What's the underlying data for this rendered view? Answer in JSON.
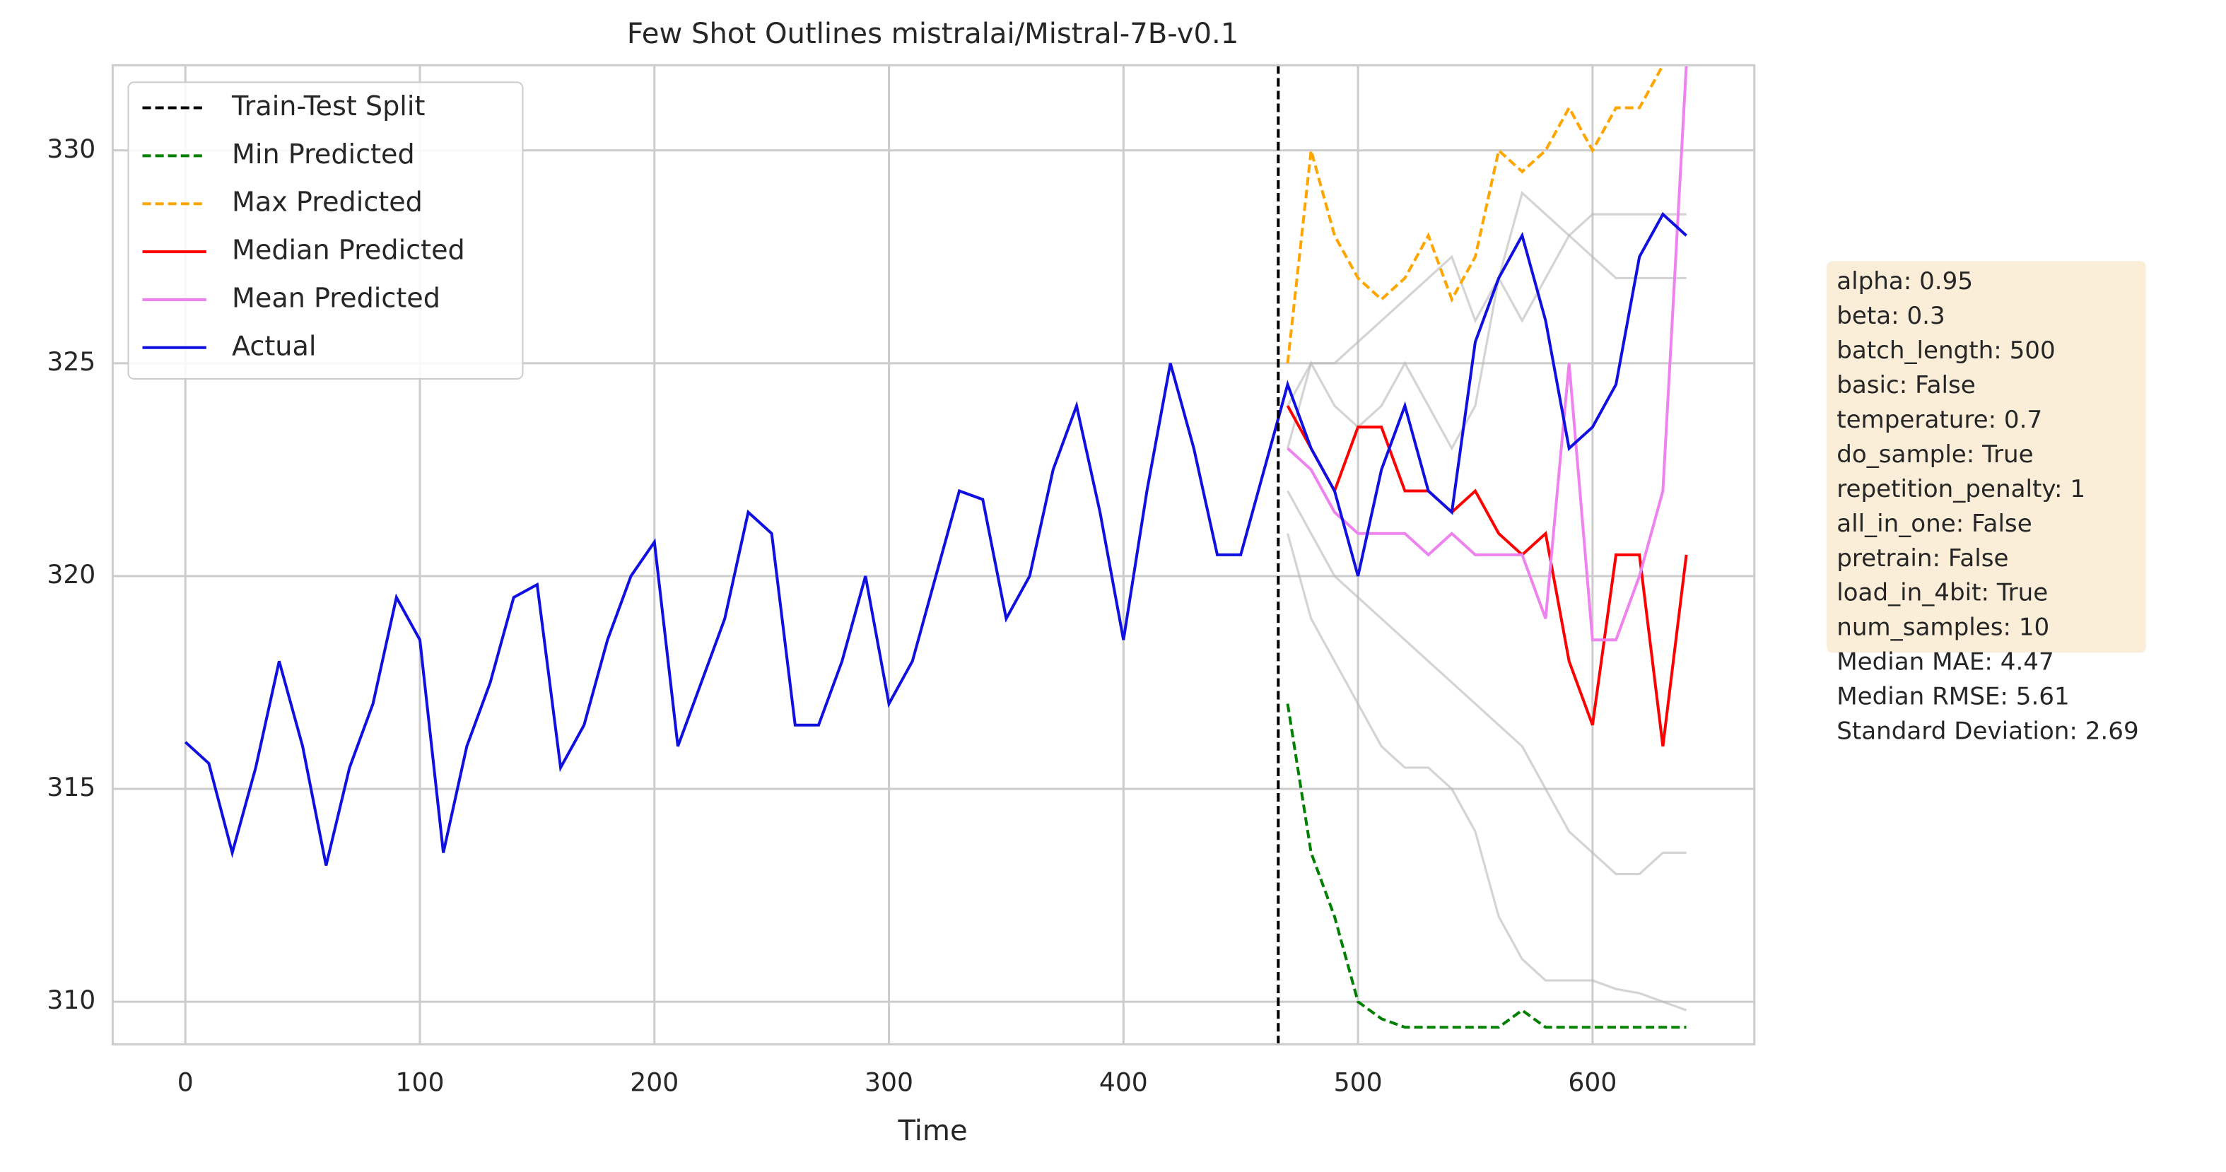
{
  "chart_data": {
    "type": "line",
    "title": "Few Shot Outlines mistralai/Mistral-7B-v0.1",
    "x_label": "Time",
    "xlim": [
      -31,
      669
    ],
    "ylim": [
      309,
      332
    ],
    "xticks": [
      0,
      100,
      200,
      300,
      400,
      500,
      600
    ],
    "yticks": [
      310,
      315,
      320,
      325,
      330
    ],
    "grid": true,
    "legend": "upper left",
    "vlines": [
      {
        "name": "Train-Test Split",
        "x": 466,
        "color": "#000000",
        "dash": true
      }
    ],
    "x": [
      0,
      10,
      20,
      30,
      40,
      50,
      60,
      70,
      80,
      90,
      100,
      110,
      120,
      130,
      140,
      150,
      160,
      170,
      180,
      190,
      200,
      210,
      220,
      230,
      240,
      250,
      260,
      270,
      280,
      290,
      300,
      310,
      320,
      330,
      340,
      350,
      360,
      370,
      380,
      390,
      400,
      410,
      420,
      430,
      440,
      450,
      460,
      470,
      480,
      490,
      500,
      510,
      520,
      530,
      540,
      550,
      560,
      570,
      580,
      590,
      600,
      610,
      620,
      630,
      640
    ],
    "series": [
      {
        "color": "#b8b8b8",
        "values": [
          null,
          null,
          null,
          null,
          null,
          null,
          null,
          null,
          null,
          null,
          null,
          null,
          null,
          null,
          null,
          null,
          null,
          null,
          null,
          null,
          null,
          null,
          null,
          null,
          null,
          null,
          null,
          null,
          null,
          null,
          null,
          null,
          null,
          null,
          null,
          null,
          null,
          null,
          null,
          null,
          null,
          null,
          null,
          null,
          null,
          null,
          null,
          324,
          325,
          325,
          325.5,
          326,
          326.5,
          327,
          327.5,
          326,
          327,
          329,
          328.5,
          328,
          328.5,
          328.5,
          328.5,
          328.5,
          328.5
        ]
      },
      {
        "color": "#b8b8b8",
        "values": [
          null,
          null,
          null,
          null,
          null,
          null,
          null,
          null,
          null,
          null,
          null,
          null,
          null,
          null,
          null,
          null,
          null,
          null,
          null,
          null,
          null,
          null,
          null,
          null,
          null,
          null,
          null,
          null,
          null,
          null,
          null,
          null,
          null,
          null,
          null,
          null,
          null,
          null,
          null,
          null,
          null,
          null,
          null,
          null,
          null,
          null,
          null,
          322,
          321,
          320,
          319.5,
          319,
          318.5,
          318,
          317.5,
          317,
          316.5,
          316,
          315,
          314,
          313.5,
          313,
          313,
          313.5,
          313.5
        ]
      },
      {
        "color": "#b8b8b8",
        "values": [
          null,
          null,
          null,
          null,
          null,
          null,
          null,
          null,
          null,
          null,
          null,
          null,
          null,
          null,
          null,
          null,
          null,
          null,
          null,
          null,
          null,
          null,
          null,
          null,
          null,
          null,
          null,
          null,
          null,
          null,
          null,
          null,
          null,
          null,
          null,
          null,
          null,
          null,
          null,
          null,
          null,
          null,
          null,
          null,
          null,
          null,
          null,
          321,
          319,
          318,
          317,
          316,
          315.5,
          315.5,
          315,
          314,
          312,
          311,
          310.5,
          310.5,
          310.5,
          310.3,
          310.2,
          310,
          309.8
        ]
      },
      {
        "color": "#b8b8b8",
        "values": [
          null,
          null,
          null,
          null,
          null,
          null,
          null,
          null,
          null,
          null,
          null,
          null,
          null,
          null,
          null,
          null,
          null,
          null,
          null,
          null,
          null,
          null,
          null,
          null,
          null,
          null,
          null,
          null,
          null,
          null,
          null,
          null,
          null,
          null,
          null,
          null,
          null,
          null,
          null,
          null,
          null,
          null,
          null,
          null,
          null,
          null,
          null,
          323,
          325,
          324,
          323.5,
          324,
          325,
          324,
          323,
          324,
          327,
          326,
          327,
          328,
          327.5,
          327,
          327,
          327,
          327
        ]
      },
      {
        "name": "Min Predicted",
        "color": "#008000",
        "dash": true,
        "values": [
          null,
          null,
          null,
          null,
          null,
          null,
          null,
          null,
          null,
          null,
          null,
          null,
          null,
          null,
          null,
          null,
          null,
          null,
          null,
          null,
          null,
          null,
          null,
          null,
          null,
          null,
          null,
          null,
          null,
          null,
          null,
          null,
          null,
          null,
          null,
          null,
          null,
          null,
          null,
          null,
          null,
          null,
          null,
          null,
          null,
          null,
          null,
          317,
          313.5,
          312,
          310,
          309.6,
          309.4,
          309.4,
          309.4,
          309.4,
          309.4,
          309.8,
          309.4,
          309.4,
          309.4,
          309.4,
          309.4,
          309.4,
          309.4
        ]
      },
      {
        "name": "Max Predicted",
        "color": "#ffa500",
        "dash": true,
        "values": [
          null,
          null,
          null,
          null,
          null,
          null,
          null,
          null,
          null,
          null,
          null,
          null,
          null,
          null,
          null,
          null,
          null,
          null,
          null,
          null,
          null,
          null,
          null,
          null,
          null,
          null,
          null,
          null,
          null,
          null,
          null,
          null,
          null,
          null,
          null,
          null,
          null,
          null,
          null,
          null,
          null,
          null,
          null,
          null,
          null,
          null,
          null,
          325,
          330,
          328,
          327,
          326.5,
          327,
          328,
          326.5,
          327.5,
          330,
          329.5,
          330,
          331,
          330,
          331,
          331,
          332,
          null
        ]
      },
      {
        "name": "Median Predicted",
        "color": "#ff0000",
        "values": [
          null,
          null,
          null,
          null,
          null,
          null,
          null,
          null,
          null,
          null,
          null,
          null,
          null,
          null,
          null,
          null,
          null,
          null,
          null,
          null,
          null,
          null,
          null,
          null,
          null,
          null,
          null,
          null,
          null,
          null,
          null,
          null,
          null,
          null,
          null,
          null,
          null,
          null,
          null,
          null,
          null,
          null,
          null,
          null,
          null,
          null,
          null,
          324,
          323,
          322,
          323.5,
          323.5,
          322,
          322,
          321.5,
          322,
          321,
          320.5,
          321,
          318,
          316.5,
          320.5,
          320.5,
          316,
          320.5
        ]
      },
      {
        "name": "Mean Predicted",
        "color": "#ee82ee",
        "values": [
          null,
          null,
          null,
          null,
          null,
          null,
          null,
          null,
          null,
          null,
          null,
          null,
          null,
          null,
          null,
          null,
          null,
          null,
          null,
          null,
          null,
          null,
          null,
          null,
          null,
          null,
          null,
          null,
          null,
          null,
          null,
          null,
          null,
          null,
          null,
          null,
          null,
          null,
          null,
          null,
          null,
          null,
          null,
          null,
          null,
          null,
          null,
          323,
          322.5,
          321.5,
          321,
          321,
          321,
          320.5,
          321,
          320.5,
          320.5,
          320.5,
          319,
          325,
          318.5,
          318.5,
          320,
          322,
          332
        ]
      },
      {
        "name": "Actual",
        "color": "#1010e0",
        "values": [
          316.1,
          315.6,
          313.5,
          315.5,
          318.0,
          316.0,
          313.2,
          315.5,
          317.0,
          319.5,
          318.5,
          313.5,
          316.0,
          317.5,
          319.5,
          319.8,
          315.5,
          316.5,
          318.5,
          320.0,
          320.8,
          316.0,
          317.5,
          319.0,
          321.5,
          321.0,
          316.5,
          316.5,
          318.0,
          320.0,
          317.0,
          318.0,
          320.0,
          322.0,
          321.8,
          319.0,
          320.0,
          322.5,
          324.0,
          321.5,
          318.5,
          322.0,
          325.0,
          323.0,
          320.5,
          320.5,
          322.5,
          324.5,
          323.0,
          322.0,
          320.0,
          322.5,
          324.0,
          322.0,
          321.5,
          325.5,
          327.0,
          328.0,
          326.0,
          323.0,
          323.5,
          324.5,
          327.5,
          328.5,
          328.0
        ]
      }
    ],
    "annotation_lines": [
      "alpha: 0.95",
      "beta: 0.3",
      "batch_length: 500",
      "basic: False",
      "temperature: 0.7",
      "do_sample: True",
      "repetition_penalty: 1",
      "all_in_one: False",
      "pretrain: False",
      "load_in_4bit: True",
      "num_samples: 10",
      "Median MAE: 4.47",
      "Median RMSE: 5.61",
      "Standard Deviation: 2.69"
    ]
  }
}
